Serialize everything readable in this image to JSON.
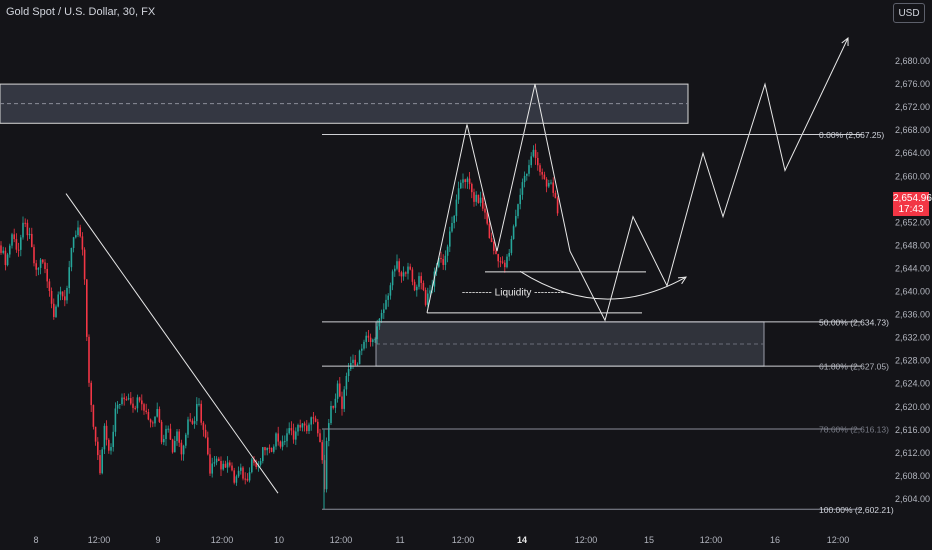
{
  "header": {
    "title": "Gold Spot / U.S. Dollar, 30, FX"
  },
  "currency_button": "USD",
  "last_price": {
    "price": "2,654.96",
    "countdown": "17:43",
    "color": "#f23645"
  },
  "colors": {
    "background": "#141418",
    "up": "#26a69a",
    "down": "#f23645",
    "drawing": "#e8e8e8",
    "zone": "#3a3d4a",
    "axis_text": "#b2b5be"
  },
  "chart_data": {
    "type": "candlestick",
    "title": "Gold Spot / U.S. Dollar, 30, FX",
    "ylim": [
      2600,
      2684
    ],
    "y_ticks": [
      2604,
      2608,
      2612,
      2616,
      2620,
      2624,
      2628,
      2632,
      2636,
      2640,
      2644,
      2648,
      2652,
      2656,
      2660,
      2664,
      2668,
      2672,
      2676,
      2680
    ],
    "y_tick_labels": [
      "2,604.00",
      "2,608.00",
      "2,612.00",
      "2,616.00",
      "2,620.00",
      "2,624.00",
      "2,628.00",
      "2,632.00",
      "2,636.00",
      "2,640.00",
      "2,644.00",
      "2,648.00",
      "2,652.00",
      "2,656.00",
      "2,660.00",
      "2,664.00",
      "2,668.00",
      "2,672.00",
      "2,676.00",
      "2,680.00"
    ],
    "x_ticks": [
      "8",
      "12:00",
      "9",
      "12:00",
      "10",
      "12:00",
      "11",
      "12:00",
      "14",
      "12:00",
      "15",
      "12:00",
      "16",
      "12:00"
    ],
    "x_tick_bold": [
      false,
      false,
      false,
      false,
      false,
      false,
      false,
      false,
      true,
      false,
      false,
      false,
      false,
      false
    ],
    "price_path": [
      [
        0,
        2648
      ],
      [
        6,
        2645
      ],
      [
        12,
        2650
      ],
      [
        18,
        2647
      ],
      [
        24,
        2652
      ],
      [
        30,
        2649
      ],
      [
        36,
        2643
      ],
      [
        42,
        2646
      ],
      [
        48,
        2641
      ],
      [
        54,
        2636
      ],
      [
        60,
        2641
      ],
      [
        66,
        2638
      ],
      [
        72,
        2649
      ],
      [
        78,
        2651
      ],
      [
        84,
        2645
      ],
      [
        88,
        2626
      ],
      [
        92,
        2618
      ],
      [
        96,
        2614
      ],
      [
        100,
        2608
      ],
      [
        104,
        2617
      ],
      [
        110,
        2612
      ],
      [
        116,
        2620
      ],
      [
        122,
        2621
      ],
      [
        128,
        2622
      ],
      [
        134,
        2620
      ],
      [
        140,
        2622
      ],
      [
        146,
        2619
      ],
      [
        152,
        2617
      ],
      [
        158,
        2620
      ],
      [
        162,
        2614
      ],
      [
        168,
        2617
      ],
      [
        172,
        2612
      ],
      [
        176,
        2616
      ],
      [
        182,
        2612
      ],
      [
        188,
        2618
      ],
      [
        194,
        2617
      ],
      [
        198,
        2621
      ],
      [
        202,
        2617
      ],
      [
        206,
        2614
      ],
      [
        210,
        2608
      ],
      [
        216,
        2612
      ],
      [
        222,
        2609
      ],
      [
        228,
        2611
      ],
      [
        234,
        2607
      ],
      [
        240,
        2609
      ],
      [
        246,
        2607
      ],
      [
        252,
        2611
      ],
      [
        258,
        2609
      ],
      [
        264,
        2613
      ],
      [
        270,
        2612
      ],
      [
        276,
        2615
      ],
      [
        282,
        2613
      ],
      [
        288,
        2616
      ],
      [
        294,
        2615
      ],
      [
        300,
        2617
      ],
      [
        306,
        2616
      ],
      [
        312,
        2618
      ],
      [
        318,
        2616
      ],
      [
        322,
        2611
      ],
      [
        324,
        2603
      ],
      [
        326,
        2613
      ],
      [
        330,
        2619
      ],
      [
        334,
        2621
      ],
      [
        338,
        2624
      ],
      [
        342,
        2619
      ],
      [
        346,
        2625
      ],
      [
        350,
        2628
      ],
      [
        356,
        2627
      ],
      [
        360,
        2630
      ],
      [
        366,
        2632
      ],
      [
        372,
        2631
      ],
      [
        378,
        2634
      ],
      [
        384,
        2637
      ],
      [
        390,
        2641
      ],
      [
        396,
        2645
      ],
      [
        402,
        2642
      ],
      [
        408,
        2645
      ],
      [
        414,
        2640
      ],
      [
        420,
        2643
      ],
      [
        426,
        2638
      ],
      [
        432,
        2641
      ],
      [
        438,
        2646
      ],
      [
        444,
        2645
      ],
      [
        450,
        2650
      ],
      [
        456,
        2655
      ],
      [
        462,
        2660
      ],
      [
        468,
        2659
      ],
      [
        474,
        2656
      ],
      [
        480,
        2656
      ],
      [
        486,
        2653
      ],
      [
        490,
        2649
      ],
      [
        494,
        2647
      ],
      [
        498,
        2646
      ],
      [
        504,
        2644
      ],
      [
        510,
        2647
      ],
      [
        514,
        2652
      ],
      [
        518,
        2655
      ],
      [
        522,
        2659
      ],
      [
        528,
        2661
      ],
      [
        534,
        2665
      ],
      [
        538,
        2662
      ],
      [
        542,
        2660
      ],
      [
        546,
        2658
      ],
      [
        550,
        2659
      ],
      [
        554,
        2657
      ],
      [
        558,
        2654
      ]
    ],
    "annotations": {
      "text": "--------- Liquidity ---------",
      "fib_levels": [
        {
          "label": "0.00% (2,667.25)",
          "price": 2667.25
        },
        {
          "label": "50.00% (2,634.73)",
          "price": 2634.73
        },
        {
          "label": "61.80% (2,627.05)",
          "price": 2627.05
        },
        {
          "label": "78.60% (2,616.13)",
          "price": 2616.13
        },
        {
          "label": "100.00% (2,602.21)",
          "price": 2602.21
        }
      ],
      "supply_zone": [
        2669.2,
        2676.0
      ],
      "demand_zone": [
        2627.05,
        2634.73
      ],
      "liquidity_levels": [
        2643.4,
        2636.3
      ],
      "projection_path": [
        [
          427,
          2636.3
        ],
        [
          467,
          2669
        ],
        [
          497,
          2647
        ],
        [
          535,
          2676
        ],
        [
          570,
          2647
        ],
        [
          605,
          2635
        ],
        [
          633,
          2653
        ],
        [
          667,
          2641
        ],
        [
          703,
          2664
        ],
        [
          723,
          2653
        ],
        [
          765,
          2676
        ],
        [
          785,
          2661
        ],
        [
          848,
          2684
        ]
      ],
      "downtrend_line": [
        [
          66,
          2657
        ],
        [
          278,
          2605
        ]
      ],
      "arc": {
        "from": [
          520,
          2643.5
        ],
        "to": [
          686,
          2642.5
        ],
        "sag": 2638.7
      }
    }
  }
}
